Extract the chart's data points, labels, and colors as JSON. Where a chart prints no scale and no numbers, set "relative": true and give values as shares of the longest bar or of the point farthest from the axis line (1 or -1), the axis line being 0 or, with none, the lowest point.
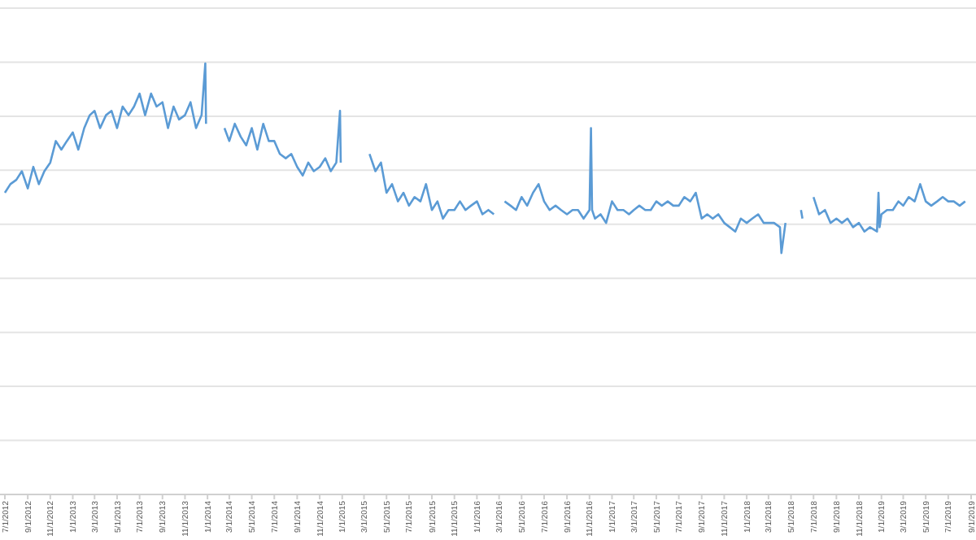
{
  "chart_data": {
    "type": "line",
    "relative": true,
    "grid": "y",
    "line_style": "solid",
    "marker": "none",
    "xlim": [
      "2012-07-01",
      "2019-09-01"
    ],
    "xticks": [
      {
        "value": "2012-07-01",
        "label": "7/1/2012"
      },
      {
        "value": "2012-09-01",
        "label": "9/1/2012"
      },
      {
        "value": "2012-11-01",
        "label": "11/1/2012"
      },
      {
        "value": "2013-01-01",
        "label": "1/1/2013"
      },
      {
        "value": "2013-03-01",
        "label": "3/1/2013"
      },
      {
        "value": "2013-05-01",
        "label": "5/1/2013"
      },
      {
        "value": "2013-07-01",
        "label": "7/1/2013"
      },
      {
        "value": "2013-09-01",
        "label": "9/1/2013"
      },
      {
        "value": "2013-11-01",
        "label": "11/1/2013"
      },
      {
        "value": "2014-01-01",
        "label": "1/1/2014"
      },
      {
        "value": "2014-03-01",
        "label": "3/1/2014"
      },
      {
        "value": "2014-05-01",
        "label": "5/1/2014"
      },
      {
        "value": "2014-07-01",
        "label": "7/1/2014"
      },
      {
        "value": "2014-09-01",
        "label": "9/1/2014"
      },
      {
        "value": "2014-11-01",
        "label": "11/1/2014"
      },
      {
        "value": "2015-01-01",
        "label": "1/1/2015"
      },
      {
        "value": "2015-03-01",
        "label": "3/1/2015"
      },
      {
        "value": "2015-05-01",
        "label": "5/1/2015"
      },
      {
        "value": "2015-07-01",
        "label": "7/1/2015"
      },
      {
        "value": "2015-09-01",
        "label": "9/1/2015"
      },
      {
        "value": "2015-11-01",
        "label": "11/1/2015"
      },
      {
        "value": "2016-01-01",
        "label": "1/1/2016"
      },
      {
        "value": "2016-03-01",
        "label": "3/1/2016"
      },
      {
        "value": "2016-05-01",
        "label": "5/1/2016"
      },
      {
        "value": "2016-07-01",
        "label": "7/1/2016"
      },
      {
        "value": "2016-09-01",
        "label": "9/1/2016"
      },
      {
        "value": "2016-11-01",
        "label": "11/1/2016"
      },
      {
        "value": "2017-01-01",
        "label": "1/1/2017"
      },
      {
        "value": "2017-03-01",
        "label": "3/1/2017"
      },
      {
        "value": "2017-05-01",
        "label": "5/1/2017"
      },
      {
        "value": "2017-07-01",
        "label": "7/1/2017"
      },
      {
        "value": "2017-09-01",
        "label": "9/1/2017"
      },
      {
        "value": "2017-11-01",
        "label": "11/1/2017"
      },
      {
        "value": "2018-01-01",
        "label": "1/1/2018"
      },
      {
        "value": "2018-03-01",
        "label": "3/1/2018"
      },
      {
        "value": "2018-05-01",
        "label": "5/1/2018"
      },
      {
        "value": "2018-07-01",
        "label": "7/1/2018"
      },
      {
        "value": "2018-09-01",
        "label": "9/1/2018"
      },
      {
        "value": "2018-11-01",
        "label": "11/1/2018"
      },
      {
        "value": "2019-01-01",
        "label": "1/1/2019"
      },
      {
        "value": "2019-03-01",
        "label": "3/1/2019"
      },
      {
        "value": "2019-05-01",
        "label": "5/1/2019"
      },
      {
        "value": "2019-07-01",
        "label": "7/1/2019"
      },
      {
        "value": "2019-09-01",
        "label": "9/1/2019"
      }
    ],
    "series": [
      {
        "color": "#5b9bd5",
        "x": [
          "2012-07-01",
          "2012-07-16",
          "2012-08-01",
          "2012-08-16",
          "2012-09-01",
          "2012-09-16",
          "2012-10-01",
          "2012-10-16",
          "2012-11-01",
          "2012-11-16",
          "2012-12-01",
          "2012-12-16",
          "2013-01-01",
          "2013-01-16",
          "2013-02-01",
          "2013-02-16",
          "2013-03-01",
          "2013-03-16",
          "2013-04-01",
          "2013-04-16",
          "2013-05-01",
          "2013-05-16",
          "2013-06-01",
          "2013-06-16",
          "2013-07-01",
          "2013-07-16",
          "2013-08-01",
          "2013-08-16",
          "2013-09-01",
          "2013-09-16",
          "2013-10-01",
          "2013-10-16",
          "2013-11-01",
          "2013-11-16",
          "2013-12-01",
          "2013-12-16",
          "2013-12-26",
          "2013-12-28",
          "2014-01-01",
          "2014-02-16",
          "2014-03-01",
          "2014-03-16",
          "2014-04-01",
          "2014-04-16",
          "2014-05-01",
          "2014-05-16",
          "2014-06-01",
          "2014-06-16",
          "2014-07-01",
          "2014-07-16",
          "2014-08-01",
          "2014-08-16",
          "2014-09-01",
          "2014-09-16",
          "2014-10-01",
          "2014-10-16",
          "2014-11-01",
          "2014-11-16",
          "2014-12-01",
          "2014-12-16",
          "2014-12-26",
          "2014-12-28",
          "2015-01-01",
          "2015-03-16",
          "2015-04-01",
          "2015-04-16",
          "2015-05-01",
          "2015-05-16",
          "2015-06-01",
          "2015-06-16",
          "2015-07-01",
          "2015-07-16",
          "2015-08-01",
          "2015-08-16",
          "2015-09-01",
          "2015-09-16",
          "2015-10-01",
          "2015-10-16",
          "2015-11-01",
          "2015-11-16",
          "2015-12-01",
          "2015-12-16",
          "2016-01-01",
          "2016-01-16",
          "2016-02-01",
          "2016-02-16",
          "2016-03-01",
          "2016-03-16",
          "2016-04-01",
          "2016-04-16",
          "2016-05-01",
          "2016-05-16",
          "2016-06-01",
          "2016-06-16",
          "2016-07-01",
          "2016-07-16",
          "2016-08-01",
          "2016-08-16",
          "2016-09-01",
          "2016-09-16",
          "2016-10-01",
          "2016-10-16",
          "2016-11-01",
          "2016-11-05",
          "2016-11-08",
          "2016-11-16",
          "2016-12-01",
          "2016-12-16",
          "2017-01-01",
          "2017-01-16",
          "2017-02-01",
          "2017-02-16",
          "2017-03-01",
          "2017-03-16",
          "2017-04-01",
          "2017-04-16",
          "2017-05-01",
          "2017-05-16",
          "2017-06-01",
          "2017-06-16",
          "2017-07-01",
          "2017-07-16",
          "2017-08-01",
          "2017-08-16",
          "2017-09-01",
          "2017-09-16",
          "2017-10-01",
          "2017-10-16",
          "2017-11-01",
          "2017-11-16",
          "2017-12-01",
          "2017-12-16",
          "2018-01-01",
          "2018-01-16",
          "2018-02-01",
          "2018-02-16",
          "2018-03-01",
          "2018-03-16",
          "2018-04-01",
          "2018-04-05",
          "2018-04-16",
          "2018-04-25",
          "2018-05-28",
          "2018-06-01",
          "2018-06-10",
          "2018-07-01",
          "2018-07-16",
          "2018-08-01",
          "2018-08-16",
          "2018-09-01",
          "2018-09-16",
          "2018-10-01",
          "2018-10-16",
          "2018-11-01",
          "2018-11-16",
          "2018-12-01",
          "2018-12-20",
          "2018-12-24",
          "2018-12-27",
          "2019-01-01",
          "2019-01-16",
          "2019-02-01",
          "2019-02-16",
          "2019-03-01",
          "2019-03-16",
          "2019-04-01",
          "2019-04-16",
          "2019-05-01",
          "2019-05-16",
          "2019-06-01",
          "2019-06-16",
          "2019-07-01",
          "2019-07-16",
          "2019-08-01",
          "2019-08-16"
        ],
        "values": [
          0.7,
          0.72,
          0.73,
          0.75,
          0.71,
          0.76,
          0.72,
          0.75,
          0.77,
          0.82,
          0.8,
          0.82,
          0.84,
          0.8,
          0.85,
          0.88,
          0.89,
          0.85,
          0.88,
          0.89,
          0.85,
          0.9,
          0.88,
          0.9,
          0.93,
          0.88,
          0.93,
          0.9,
          0.91,
          0.85,
          0.9,
          0.87,
          0.88,
          0.91,
          0.85,
          0.88,
          1.0,
          0.86,
          null,
          0.85,
          0.82,
          0.86,
          0.83,
          0.81,
          0.85,
          0.8,
          0.86,
          0.82,
          0.82,
          0.79,
          0.78,
          0.79,
          0.76,
          0.74,
          0.77,
          0.75,
          0.76,
          0.78,
          0.75,
          0.77,
          0.89,
          0.77,
          null,
          0.79,
          0.75,
          0.77,
          0.7,
          0.72,
          0.68,
          0.7,
          0.67,
          0.69,
          0.68,
          0.72,
          0.66,
          0.68,
          0.64,
          0.66,
          0.66,
          0.68,
          0.66,
          0.67,
          0.68,
          0.65,
          0.66,
          0.65,
          null,
          0.68,
          0.67,
          0.66,
          0.69,
          0.67,
          0.7,
          0.72,
          0.68,
          0.66,
          0.67,
          0.66,
          0.65,
          0.66,
          0.66,
          0.64,
          0.66,
          0.85,
          0.66,
          0.64,
          0.65,
          0.63,
          0.68,
          0.66,
          0.66,
          0.65,
          0.66,
          0.67,
          0.66,
          0.66,
          0.68,
          0.67,
          0.68,
          0.67,
          0.67,
          0.69,
          0.68,
          0.7,
          0.64,
          0.65,
          0.64,
          0.65,
          0.63,
          0.62,
          0.61,
          0.64,
          0.63,
          0.64,
          0.65,
          0.63,
          0.63,
          0.63,
          0.62,
          0.56,
          0.63,
          null,
          0.66,
          0.64,
          null,
          0.69,
          0.65,
          0.66,
          0.63,
          0.64,
          0.63,
          0.64,
          0.62,
          0.63,
          0.61,
          0.62,
          0.61,
          0.7,
          0.62,
          0.65,
          0.66,
          0.66,
          0.68,
          0.67,
          0.69,
          0.68,
          0.72,
          0.68,
          0.67,
          0.68,
          0.69,
          0.68,
          0.68,
          0.67,
          0.68
        ]
      }
    ]
  }
}
